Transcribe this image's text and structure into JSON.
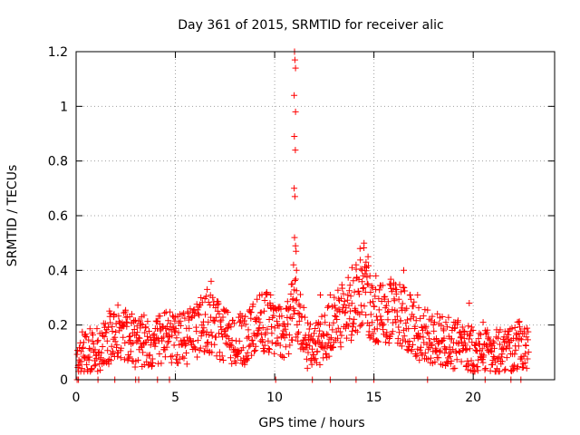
{
  "chart_data": {
    "type": "scatter",
    "title": "Day 361 of 2015, SRMTID for receiver alic",
    "xlabel": "GPS time / hours",
    "ylabel": "SRMTID / TECUs",
    "xlim": [
      0,
      24.1
    ],
    "ylim": [
      0,
      1.2
    ],
    "x_ticks": [
      0,
      5,
      10,
      15,
      20
    ],
    "x_tick_labels": [
      "0",
      "5",
      "10",
      "15",
      "20"
    ],
    "y_ticks": [
      0,
      0.2,
      0.4,
      0.6,
      0.8,
      1,
      1.2
    ],
    "y_tick_labels": [
      "0",
      "0.2",
      "0.4",
      "0.6",
      "0.8",
      "1",
      "1.2"
    ],
    "grid": true,
    "marker": "plus",
    "color": "#ff0000",
    "series": [
      {
        "name": "SRMTID",
        "profile": [
          [
            0.0,
            0.09
          ],
          [
            0.5,
            0.11
          ],
          [
            1.0,
            0.1
          ],
          [
            1.5,
            0.14
          ],
          [
            2.0,
            0.18
          ],
          [
            2.5,
            0.17
          ],
          [
            3.0,
            0.13
          ],
          [
            3.5,
            0.15
          ],
          [
            4.0,
            0.14
          ],
          [
            4.5,
            0.15
          ],
          [
            5.0,
            0.16
          ],
          [
            5.5,
            0.15
          ],
          [
            6.0,
            0.18
          ],
          [
            6.5,
            0.21
          ],
          [
            7.0,
            0.19
          ],
          [
            7.5,
            0.16
          ],
          [
            8.0,
            0.14
          ],
          [
            8.5,
            0.15
          ],
          [
            9.0,
            0.18
          ],
          [
            9.5,
            0.22
          ],
          [
            10.0,
            0.18
          ],
          [
            10.5,
            0.17
          ],
          [
            10.8,
            0.22
          ],
          [
            11.0,
            0.3
          ],
          [
            11.3,
            0.22
          ],
          [
            11.6,
            0.13
          ],
          [
            12.0,
            0.11
          ],
          [
            12.5,
            0.17
          ],
          [
            13.0,
            0.2
          ],
          [
            13.5,
            0.24
          ],
          [
            14.0,
            0.28
          ],
          [
            14.5,
            0.34
          ],
          [
            15.0,
            0.24
          ],
          [
            15.5,
            0.23
          ],
          [
            16.0,
            0.26
          ],
          [
            16.5,
            0.24
          ],
          [
            17.0,
            0.18
          ],
          [
            17.5,
            0.17
          ],
          [
            18.0,
            0.15
          ],
          [
            18.5,
            0.14
          ],
          [
            19.0,
            0.13
          ],
          [
            19.5,
            0.12
          ],
          [
            20.0,
            0.11
          ],
          [
            20.5,
            0.1
          ],
          [
            21.0,
            0.1
          ],
          [
            21.5,
            0.11
          ],
          [
            22.0,
            0.12
          ],
          [
            22.5,
            0.13
          ],
          [
            22.8,
            0.11
          ]
        ],
        "peaks": [
          [
            11.0,
            1.2
          ],
          [
            11.02,
            1.17
          ],
          [
            11.05,
            1.14
          ],
          [
            10.98,
            1.04
          ],
          [
            11.05,
            0.98
          ],
          [
            10.99,
            0.89
          ],
          [
            11.04,
            0.84
          ],
          [
            10.98,
            0.7
          ],
          [
            11.02,
            0.67
          ],
          [
            11.0,
            0.52
          ],
          [
            11.05,
            0.49
          ],
          [
            11.08,
            0.47
          ],
          [
            10.95,
            0.42
          ],
          [
            11.1,
            0.4
          ],
          [
            10.9,
            0.35
          ],
          [
            14.5,
            0.5
          ],
          [
            14.3,
            0.48
          ],
          [
            14.7,
            0.45
          ],
          [
            14.6,
            0.43
          ],
          [
            14.1,
            0.42
          ],
          [
            14.4,
            0.4
          ],
          [
            13.9,
            0.41
          ],
          [
            14.8,
            0.38
          ],
          [
            15.1,
            0.38
          ],
          [
            16.5,
            0.4
          ],
          [
            6.8,
            0.36
          ],
          [
            6.6,
            0.33
          ],
          [
            9.6,
            0.32
          ],
          [
            9.8,
            0.31
          ],
          [
            12.8,
            0.31
          ],
          [
            12.3,
            0.31
          ],
          [
            16.1,
            0.33
          ],
          [
            17.2,
            0.31
          ],
          [
            19.8,
            0.28
          ],
          [
            20.5,
            0.21
          ],
          [
            22.3,
            0.21
          ],
          [
            1.9,
            0.23
          ],
          [
            2.7,
            0.23
          ],
          [
            3.3,
            0.23
          ],
          [
            9.5,
            0.29
          ]
        ],
        "zero_points": [
          0.05,
          0.12,
          1.1,
          1.95,
          3.0,
          3.15,
          4.1,
          4.7,
          10.05,
          11.9,
          12.8,
          14.1,
          15.0,
          17.7,
          20.6,
          21.9,
          22.4
        ]
      }
    ]
  }
}
